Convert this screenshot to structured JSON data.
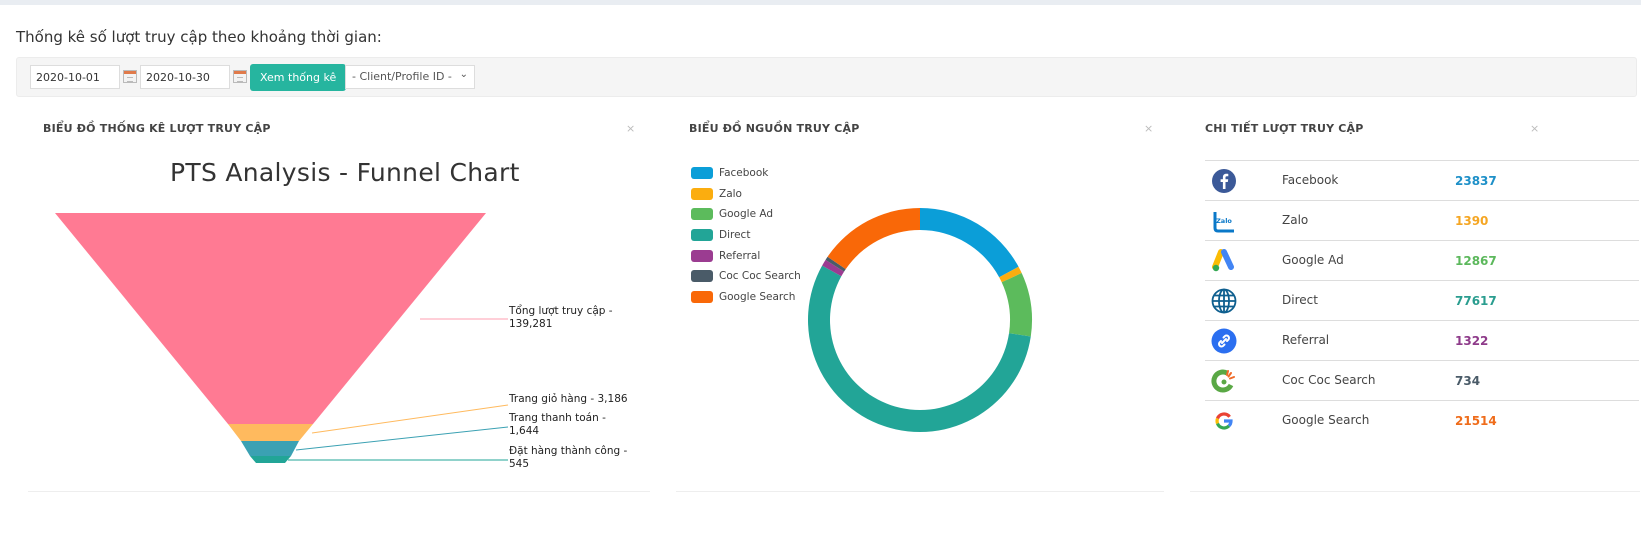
{
  "header": {
    "title": "Thống kê số lượt truy cập theo khoảng thời gian:"
  },
  "filters": {
    "date_from": "2020-10-01",
    "date_to": "2020-10-30",
    "view_button": "Xem thống kê",
    "client_select": "- Client/Profile ID -"
  },
  "panels": {
    "funnel": {
      "title": "BIỂU ĐỒ THỐNG KÊ LƯỢT TRUY CẬP",
      "close": "×"
    },
    "sources": {
      "title": "BIỂU ĐỒ NGUỒN TRUY CẬP",
      "close": "×"
    },
    "details": {
      "title": "CHI TIẾT LƯỢT TRUY CẬP",
      "close": "×"
    }
  },
  "chart_data": [
    {
      "type": "funnel",
      "title": "PTS Analysis - Funnel Chart",
      "categories": [
        "Tổng lượt truy cập",
        "Trang giỏ hàng",
        "Trang thanh toán",
        "Đặt hàng thành công"
      ],
      "values": [
        139281,
        3186,
        1644,
        545
      ],
      "labels": [
        "Tổng lượt truy cập - 139,281",
        "Trang giỏ hàng - 3,186",
        "Trang thanh toán - 1,644",
        "Đặt hàng thành công - 545"
      ],
      "label_lines": [
        [
          "Tổng lượt truy cập -",
          "139,281"
        ],
        [
          "Trang giỏ hàng - 3,186"
        ],
        [
          "Trang thanh toán -",
          "1,644"
        ],
        [
          "Đặt hàng thành công -",
          "545"
        ]
      ],
      "colors": [
        "#ff7a93",
        "#ffba5e",
        "#3ba1b3",
        "#22a597"
      ]
    },
    {
      "type": "pie",
      "subtype": "doughnut",
      "categories": [
        "Facebook",
        "Zalo",
        "Google Ad",
        "Direct",
        "Referral",
        "Coc Coc Search",
        "Google Search"
      ],
      "values": [
        23837,
        1390,
        12867,
        77617,
        1322,
        734,
        21514
      ],
      "colors": [
        "#0b9ed8",
        "#fbad0f",
        "#5cbb5c",
        "#22a597",
        "#9b3c91",
        "#4a5b68",
        "#f96808"
      ],
      "legend_position": "top-left"
    }
  ],
  "details": {
    "rows": [
      {
        "icon": "facebook-icon",
        "name": "Facebook",
        "value": "23837",
        "color": "#1e90c8"
      },
      {
        "icon": "zalo-icon",
        "name": "Zalo",
        "value": "1390",
        "color": "#f5a623"
      },
      {
        "icon": "google-ads-icon",
        "name": "Google Ad",
        "value": "12867",
        "color": "#5cb85c"
      },
      {
        "icon": "globe-icon",
        "name": "Direct",
        "value": "77617",
        "color": "#2a9d8f"
      },
      {
        "icon": "link-icon",
        "name": "Referral",
        "value": "1322",
        "color": "#8e3b8a"
      },
      {
        "icon": "coccoc-icon",
        "name": "Coc Coc Search",
        "value": "734",
        "color": "#4a5b68"
      },
      {
        "icon": "google-icon",
        "name": "Google Search",
        "value": "21514",
        "color": "#ef6c1a"
      }
    ]
  }
}
